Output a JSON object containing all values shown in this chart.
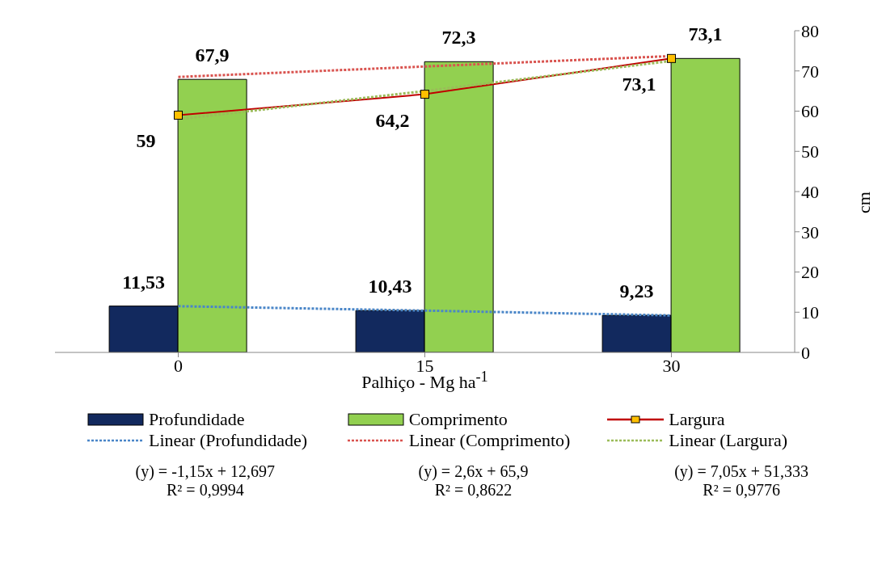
{
  "chart_data": {
    "type": "bar",
    "xlabel": "Palhiço - Mg ha$^{-1}$",
    "ylabel": "cm",
    "categories": [
      "0",
      "15",
      "30"
    ],
    "ylim": [
      0,
      80
    ],
    "yticks": [
      0,
      10,
      20,
      30,
      40,
      50,
      60,
      70,
      80
    ],
    "grid": false,
    "legend": "bottom",
    "series": [
      {
        "name": "Profundidade",
        "color": "#12295e",
        "values": [
          11.53,
          10.43,
          9.23
        ],
        "value_labels": [
          "11,53",
          "10,43",
          "9,23"
        ]
      },
      {
        "name": "Comprimento",
        "color": "#92d050",
        "values": [
          67.9,
          72.3,
          73.1
        ],
        "value_labels": [
          "67,9",
          "72,3",
          "73,1"
        ]
      },
      {
        "name": "Largura",
        "type": "line",
        "color": "#c00000",
        "colors": [
          "#ffc000",
          "#ffc000",
          "#ffc000"
        ],
        "marker": "square",
        "line_style": "solid",
        "values": [
          59,
          64.2,
          73.1
        ],
        "value_labels": [
          "59",
          "64,2",
          "73,1"
        ]
      },
      {
        "name": "Linear (Profundidade)",
        "type": "line",
        "color": "#4a86c8",
        "marker": "none",
        "line_style": "dotted",
        "values": [
          11.5,
          10.4,
          9.2
        ]
      },
      {
        "name": "Linear (Comprimento)",
        "type": "line",
        "color": "#d9534f",
        "marker": "none",
        "line_style": "dotted",
        "values": [
          68.5,
          71.1,
          73.7
        ]
      },
      {
        "name": "Linear (Largura)",
        "type": "line",
        "color": "#9bbb59",
        "marker": "none",
        "line_style": "dotted",
        "values": [
          58,
          65,
          72.5
        ]
      }
    ],
    "annotations": [
      "(y) = -1,15x + 12,697",
      "(y) = 2,6x + 65,9",
      "(y) = 7,05x + 51,333",
      "R² = 0,9994",
      "R² = 0,8622",
      "R² = 0,9776"
    ]
  }
}
